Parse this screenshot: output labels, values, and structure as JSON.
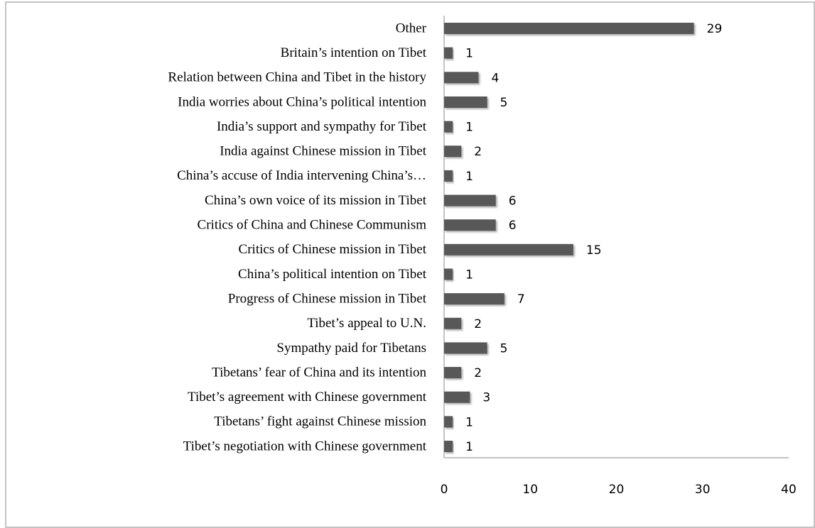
{
  "chart_data": {
    "type": "bar",
    "orientation": "horizontal",
    "categories": [
      "Other",
      "Britain’s intention on Tibet",
      "Relation between China and Tibet in the history",
      "India worries about China’s political intention",
      "India’s support and sympathy for Tibet",
      "India against Chinese mission in Tibet",
      "China’s accuse of India intervening China’s…",
      "China’s own voice of its mission in Tibet",
      "Critics of China and Chinese Communism",
      "Critics of Chinese mission in Tibet",
      "China’s political intention on Tibet",
      "Progress of Chinese mission in Tibet",
      "Tibet’s appeal to U.N.",
      "Sympathy paid for Tibetans",
      "Tibetans’ fear of China and its intention",
      "Tibet’s agreement with Chinese government",
      "Tibetans’ fight against Chinese mission",
      "Tibet’s negotiation with Chinese government"
    ],
    "values": [
      29,
      1,
      4,
      5,
      1,
      2,
      1,
      6,
      6,
      15,
      1,
      7,
      2,
      5,
      2,
      3,
      1,
      1
    ],
    "color": "#595959",
    "xlim": [
      0,
      40
    ],
    "xticks": [
      0,
      10,
      20,
      30,
      40
    ],
    "grid": false
  }
}
